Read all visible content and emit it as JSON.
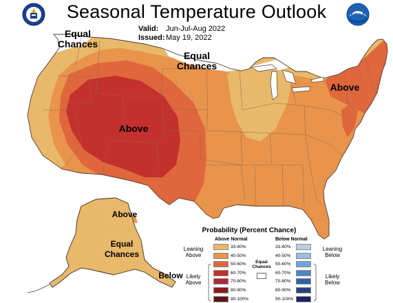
{
  "title": "Seasonal Temperature Outlook",
  "valid": {
    "label": "Valid:",
    "value": "Jun-Jul-Aug 2022"
  },
  "issued": {
    "label": "Issued:",
    "value": "May 19, 2022"
  },
  "logos": {
    "left": "dept-of-commerce-seal-icon",
    "right_text": "NOAA"
  },
  "map_labels": {
    "equal_nw": [
      "Equal",
      "Chances"
    ],
    "equal_n": [
      "Equal",
      "Chances"
    ],
    "above_ne": "Above",
    "above_center": "Above",
    "above_ak": "Above",
    "equal_ak": [
      "Equal",
      "Chances"
    ],
    "below_ak": "Below"
  },
  "legend": {
    "title": "Probability (Percent Chance)",
    "above_head": "Above Normal",
    "below_head": "Below Normal",
    "leaning_above": [
      "Leaning",
      "Above"
    ],
    "likely_above": [
      "Likely",
      "Above"
    ],
    "leaning_below": [
      "Leaning",
      "Below"
    ],
    "likely_below": [
      "Likely",
      "Below"
    ],
    "equal_chances": [
      "Equal",
      "Chances"
    ],
    "ranges": [
      "33-40%",
      "40-50%",
      "50-60%",
      "60-70%",
      "70-80%",
      "80-90%",
      "90-100%"
    ],
    "above_colors": [
      "#e8b96a",
      "#e9944c",
      "#e0663c",
      "#c4302c",
      "#b0263a",
      "#8c1b1e",
      "#5e1414"
    ],
    "below_colors": [
      "#bcd0e6",
      "#9dbedd",
      "#6fa6d7",
      "#4a87c6",
      "#2e62a8",
      "#2a3f86",
      "#1f225e"
    ]
  },
  "colors": {
    "ec": "#ffffff",
    "a33": "#e8b96a",
    "a40": "#e9944c",
    "a50": "#e0663c",
    "a60": "#c4302c"
  }
}
